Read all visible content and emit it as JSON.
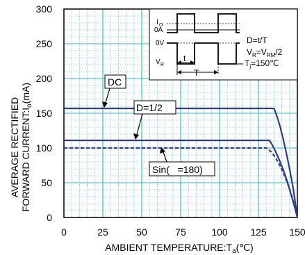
{
  "chart_data": {
    "type": "line",
    "xlabel": "AMBIENT TEMPERATURE:T",
    "xlabel_sub": "a",
    "xlabel_unit": "(℃)",
    "ylabel_line1": "AVERAGE RECTIFIED",
    "ylabel_line2": "FORWARD CURRENT:I",
    "ylabel_sub": "o",
    "ylabel_unit": "(mA)",
    "xlim": [
      0,
      150
    ],
    "ylim": [
      0,
      300
    ],
    "xticks": [
      0,
      25,
      50,
      75,
      100,
      125,
      150
    ],
    "yticks": [
      0,
      50,
      100,
      150,
      200,
      250,
      300
    ],
    "grid": true,
    "minor_grid": true,
    "series": [
      {
        "name": "DC",
        "style": "solid",
        "points": [
          [
            0,
            157
          ],
          [
            135,
            157
          ],
          [
            137,
            145
          ],
          [
            139,
            130
          ],
          [
            141,
            112
          ],
          [
            143,
            92
          ],
          [
            145,
            70
          ],
          [
            147,
            46
          ],
          [
            148.5,
            25
          ],
          [
            149.5,
            6
          ],
          [
            150,
            0
          ]
        ]
      },
      {
        "name": "D=1/2",
        "style": "solid",
        "points": [
          [
            0,
            111
          ],
          [
            132,
            111
          ],
          [
            134,
            104
          ],
          [
            136,
            95
          ],
          [
            138,
            85
          ],
          [
            140,
            74
          ],
          [
            142,
            62
          ],
          [
            144,
            48
          ],
          [
            146,
            33
          ],
          [
            148,
            17
          ],
          [
            149.5,
            4
          ],
          [
            150,
            0
          ]
        ]
      },
      {
        "name": "Sin(   =180)",
        "style": "dashed",
        "points": [
          [
            0,
            100
          ],
          [
            130,
            100
          ],
          [
            133,
            95
          ],
          [
            136,
            86
          ],
          [
            139,
            74
          ],
          [
            142,
            59
          ],
          [
            145,
            41
          ],
          [
            147,
            27
          ],
          [
            149,
            10
          ],
          [
            150,
            0
          ]
        ]
      }
    ],
    "annotations": {
      "dc": "DC",
      "duty": "D=1/2",
      "sin": "Sin(   =180)"
    },
    "inset": {
      "io_label": "I",
      "io_sub": "O",
      "zero_a": "0A",
      "zero_v": "0V",
      "vr_label": "V",
      "vr_sub": "R",
      "t_label": "t",
      "T_label": "T",
      "eq1": "D=t/T",
      "eq2_a": "V",
      "eq2_a_sub": "R",
      "eq2_b": "=V",
      "eq2_b_sub": "RM",
      "eq2_c": "/2",
      "eq3_a": "T",
      "eq3_a_sub": "j",
      "eq3_b": "=150℃"
    },
    "colors": {
      "grid": "#2fb3c8",
      "series": "#2e3a8c",
      "axis": "#000000"
    }
  }
}
